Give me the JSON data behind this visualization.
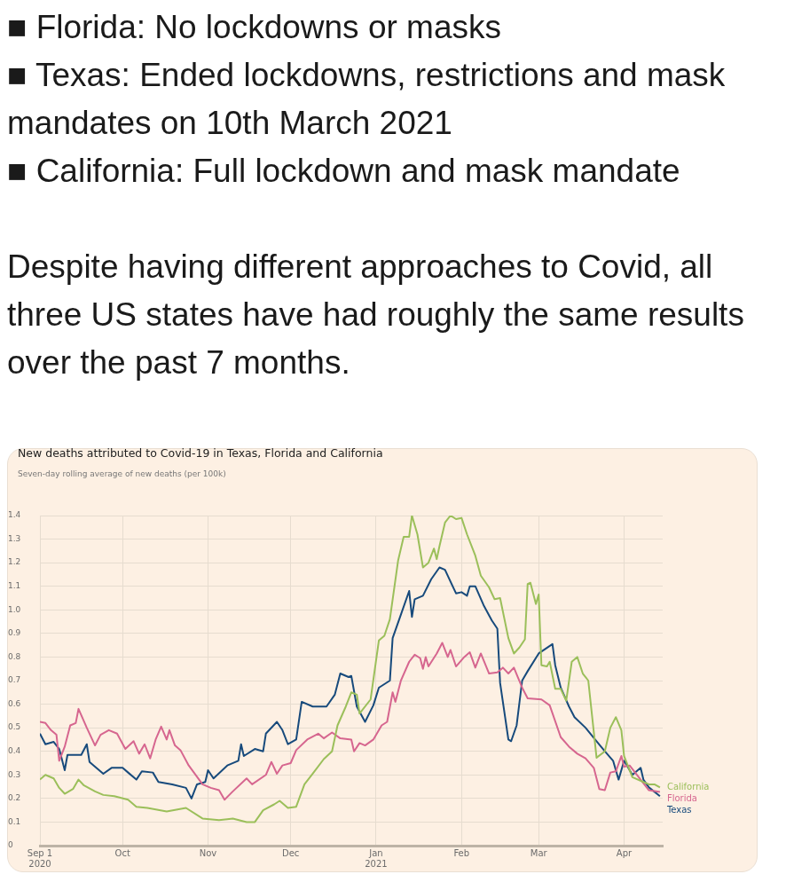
{
  "chart_data": {
    "type": "line",
    "title": "New deaths attributed to Covid-19 in Texas, Florida and California",
    "subtitle": "Seven-day rolling average of new deaths (per 100k)",
    "annotations": [
      "■ Florida: No lockdowns or masks",
      "■ Texas: Ended lockdowns, restrictions and mask mandates on 10th March 2021",
      "■ California: Full lockdown and mask mandate",
      "Despite having different approaches to Covid, all three US states have had roughly the same results over the past 7 months."
    ],
    "xlim": [
      "2020-09-01",
      "2021-04-15"
    ],
    "xticks": [
      {
        "value": "2020-09-01",
        "label": "Sep 1\n2020"
      },
      {
        "value": "2020-10-01",
        "label": "Oct"
      },
      {
        "value": "2020-11-01",
        "label": "Nov"
      },
      {
        "value": "2020-12-01",
        "label": "Dec"
      },
      {
        "value": "2021-01-01",
        "label": "Jan\n2021"
      },
      {
        "value": "2021-02-01",
        "label": "Feb"
      },
      {
        "value": "2021-03-01",
        "label": "Mar"
      },
      {
        "value": "2021-04-01",
        "label": "Apr"
      }
    ],
    "ylim": [
      0,
      1.4
    ],
    "yticks": [
      0,
      0.1,
      0.2,
      0.3,
      0.4,
      0.5,
      0.6,
      0.7,
      0.8,
      0.9,
      {
        "value": 1,
        "label": "1.0"
      },
      1.1,
      1.2,
      1.3,
      1.4
    ],
    "grid": true,
    "marker": "none",
    "line_style": "solid",
    "series": [
      {
        "name": "California",
        "color": "#9bbf5a",
        "x": [
          "2020-09-01",
          "2020-09-03",
          "2020-09-06",
          "2020-09-08",
          "2020-09-10",
          "2020-09-13",
          "2020-09-15",
          "2020-09-17",
          "2020-09-21",
          "2020-09-24",
          "2020-09-28",
          "2020-10-03",
          "2020-10-06",
          "2020-10-10",
          "2020-10-17",
          "2020-10-24",
          "2020-10-30",
          "2020-11-05",
          "2020-11-10",
          "2020-11-15",
          "2020-11-18",
          "2020-11-21",
          "2020-11-25",
          "2020-11-27",
          "2020-11-30",
          "2020-12-03",
          "2020-12-06",
          "2020-12-09",
          "2020-12-13",
          "2020-12-16",
          "2020-12-18",
          "2020-12-21",
          "2020-12-23",
          "2020-12-25",
          "2020-12-26",
          "2020-12-30",
          "2021-01-02",
          "2021-01-04",
          "2021-01-06",
          "2021-01-09",
          "2021-01-11",
          "2021-01-13",
          "2021-01-14",
          "2021-01-16",
          "2021-01-18",
          "2021-01-20",
          "2021-01-22",
          "2021-01-23",
          "2021-01-24",
          "2021-01-26",
          "2021-01-28",
          "2021-01-30",
          "2021-02-01",
          "2021-02-03",
          "2021-02-06",
          "2021-02-08",
          "2021-02-11",
          "2021-02-13",
          "2021-02-15",
          "2021-02-18",
          "2021-02-20",
          "2021-02-22",
          "2021-02-24",
          "2021-02-25",
          "2021-02-26",
          "2021-02-28",
          "2021-03-01",
          "2021-03-02",
          "2021-03-04",
          "2021-03-05",
          "2021-03-07",
          "2021-03-09",
          "2021-03-11",
          "2021-03-13",
          "2021-03-15",
          "2021-03-17",
          "2021-03-19",
          "2021-03-22",
          "2021-03-25",
          "2021-03-27",
          "2021-03-29",
          "2021-03-31",
          "2021-04-01",
          "2021-04-04",
          "2021-04-08",
          "2021-04-10",
          "2021-04-12",
          "2021-04-14"
        ],
        "values": [
          0.28,
          0.3,
          0.285,
          0.245,
          0.22,
          0.24,
          0.28,
          0.255,
          0.23,
          0.215,
          0.21,
          0.195,
          0.165,
          0.16,
          0.145,
          0.16,
          0.115,
          0.108,
          0.115,
          0.1,
          0.1,
          0.15,
          0.175,
          0.19,
          0.16,
          0.165,
          0.26,
          0.305,
          0.367,
          0.4,
          0.51,
          0.59,
          0.65,
          0.64,
          0.56,
          0.62,
          0.87,
          0.89,
          0.96,
          1.21,
          1.31,
          1.31,
          1.4,
          1.32,
          1.18,
          1.2,
          1.26,
          1.215,
          1.27,
          1.37,
          1.4,
          1.385,
          1.39,
          1.32,
          1.23,
          1.145,
          1.095,
          1.045,
          1.05,
          0.88,
          0.815,
          0.84,
          0.875,
          1.11,
          1.115,
          1.025,
          1.065,
          0.765,
          0.76,
          0.78,
          0.665,
          0.665,
          0.615,
          0.78,
          0.8,
          0.73,
          0.7,
          0.373,
          0.4,
          0.5,
          0.545,
          0.49,
          0.38,
          0.29,
          0.27,
          0.26,
          0.26,
          0.247
        ]
      },
      {
        "name": "Florida",
        "color": "#d6668f",
        "x": [
          "2020-09-01",
          "2020-09-03",
          "2020-09-05",
          "2020-09-07",
          "2020-09-08",
          "2020-09-10",
          "2020-09-12",
          "2020-09-14",
          "2020-09-15",
          "2020-09-18",
          "2020-09-21",
          "2020-09-23",
          "2020-09-26",
          "2020-09-29",
          "2020-10-02",
          "2020-10-05",
          "2020-10-07",
          "2020-10-09",
          "2020-10-11",
          "2020-10-13",
          "2020-10-15",
          "2020-10-17",
          "2020-10-18",
          "2020-10-20",
          "2020-10-22",
          "2020-10-25",
          "2020-10-30",
          "2020-11-02",
          "2020-11-05",
          "2020-11-07",
          "2020-11-10",
          "2020-11-15",
          "2020-11-17",
          "2020-11-22",
          "2020-11-24",
          "2020-11-26",
          "2020-11-28",
          "2020-12-01",
          "2020-12-03",
          "2020-12-07",
          "2020-12-11",
          "2020-12-13",
          "2020-12-16",
          "2020-12-19",
          "2020-12-23",
          "2020-12-24",
          "2020-12-26",
          "2020-12-28",
          "2020-12-31",
          "2021-01-03",
          "2021-01-05",
          "2021-01-07",
          "2021-01-08",
          "2021-01-10",
          "2021-01-13",
          "2021-01-15",
          "2021-01-17",
          "2021-01-18",
          "2021-01-19",
          "2021-01-20",
          "2021-01-23",
          "2021-01-25",
          "2021-01-27",
          "2021-01-28",
          "2021-01-30",
          "2021-02-02",
          "2021-02-04",
          "2021-02-06",
          "2021-02-08",
          "2021-02-11",
          "2021-02-14",
          "2021-02-16",
          "2021-02-18",
          "2021-02-20",
          "2021-02-23",
          "2021-02-25",
          "2021-03-02",
          "2021-03-05",
          "2021-03-09",
          "2021-03-12",
          "2021-03-15",
          "2021-03-18",
          "2021-03-21",
          "2021-03-23",
          "2021-03-25",
          "2021-03-27",
          "2021-03-29",
          "2021-03-31",
          "2021-04-01",
          "2021-04-03",
          "2021-04-07",
          "2021-04-10",
          "2021-04-14"
        ],
        "values": [
          0.525,
          0.52,
          0.49,
          0.47,
          0.36,
          0.42,
          0.51,
          0.52,
          0.58,
          0.5,
          0.425,
          0.47,
          0.49,
          0.475,
          0.41,
          0.443,
          0.39,
          0.43,
          0.37,
          0.45,
          0.505,
          0.45,
          0.49,
          0.425,
          0.405,
          0.34,
          0.26,
          0.245,
          0.235,
          0.195,
          0.23,
          0.285,
          0.26,
          0.3,
          0.355,
          0.305,
          0.34,
          0.35,
          0.405,
          0.45,
          0.475,
          0.455,
          0.48,
          0.455,
          0.45,
          0.4,
          0.435,
          0.425,
          0.45,
          0.51,
          0.525,
          0.65,
          0.61,
          0.7,
          0.78,
          0.81,
          0.795,
          0.75,
          0.8,
          0.76,
          0.815,
          0.86,
          0.8,
          0.83,
          0.76,
          0.8,
          0.82,
          0.755,
          0.815,
          0.73,
          0.735,
          0.755,
          0.73,
          0.755,
          0.67,
          0.625,
          0.62,
          0.595,
          0.46,
          0.42,
          0.39,
          0.37,
          0.33,
          0.24,
          0.235,
          0.31,
          0.315,
          0.38,
          0.335,
          0.34,
          0.28,
          0.235,
          0.228
        ]
      },
      {
        "name": "Texas",
        "color": "#174a7c",
        "x": [
          "2020-09-01",
          "2020-09-03",
          "2020-09-06",
          "2020-09-08",
          "2020-09-10",
          "2020-09-11",
          "2020-09-16",
          "2020-09-18",
          "2020-09-19",
          "2020-09-24",
          "2020-09-27",
          "2020-10-01",
          "2020-10-03",
          "2020-10-06",
          "2020-10-08",
          "2020-10-12",
          "2020-10-14",
          "2020-10-19",
          "2020-10-24",
          "2020-10-26",
          "2020-10-28",
          "2020-10-31",
          "2020-11-01",
          "2020-11-03",
          "2020-11-08",
          "2020-11-12",
          "2020-11-13",
          "2020-11-14",
          "2020-11-18",
          "2020-11-21",
          "2020-11-22",
          "2020-11-26",
          "2020-11-28",
          "2020-11-30",
          "2020-12-03",
          "2020-12-05",
          "2020-12-09",
          "2020-12-14",
          "2020-12-17",
          "2020-12-19",
          "2020-12-22",
          "2020-12-23",
          "2020-12-25",
          "2020-12-28",
          "2020-12-31",
          "2021-01-02",
          "2021-01-06",
          "2021-01-07",
          "2021-01-10",
          "2021-01-13",
          "2021-01-14",
          "2021-01-15",
          "2021-01-18",
          "2021-01-21",
          "2021-01-24",
          "2021-01-26",
          "2021-01-30",
          "2021-02-01",
          "2021-02-03",
          "2021-02-04",
          "2021-02-06",
          "2021-02-09",
          "2021-02-12",
          "2021-02-14",
          "2021-02-15",
          "2021-02-18",
          "2021-02-19",
          "2021-02-21",
          "2021-02-23",
          "2021-02-25",
          "2021-03-01",
          "2021-03-06",
          "2021-03-07",
          "2021-03-09",
          "2021-03-12",
          "2021-03-14",
          "2021-03-18",
          "2021-03-22",
          "2021-03-25",
          "2021-03-28",
          "2021-03-30",
          "2021-04-01",
          "2021-04-04",
          "2021-04-07",
          "2021-04-08",
          "2021-04-10",
          "2021-04-14"
        ],
        "values": [
          0.475,
          0.43,
          0.44,
          0.41,
          0.32,
          0.385,
          0.385,
          0.43,
          0.355,
          0.305,
          0.33,
          0.33,
          0.31,
          0.28,
          0.315,
          0.31,
          0.27,
          0.26,
          0.245,
          0.2,
          0.26,
          0.27,
          0.32,
          0.285,
          0.34,
          0.36,
          0.43,
          0.38,
          0.41,
          0.4,
          0.475,
          0.525,
          0.49,
          0.43,
          0.45,
          0.61,
          0.59,
          0.59,
          0.64,
          0.73,
          0.715,
          0.72,
          0.59,
          0.525,
          0.595,
          0.67,
          0.7,
          0.88,
          0.98,
          1.08,
          0.97,
          1.045,
          1.06,
          1.13,
          1.18,
          1.17,
          1.07,
          1.075,
          1.06,
          1.1,
          1.1,
          1.02,
          0.955,
          0.92,
          0.69,
          0.45,
          0.443,
          0.51,
          0.7,
          0.74,
          0.815,
          0.855,
          0.765,
          0.67,
          0.59,
          0.545,
          0.5,
          0.443,
          0.4,
          0.36,
          0.28,
          0.36,
          0.3,
          0.33,
          0.28,
          0.247,
          0.21
        ]
      }
    ]
  }
}
